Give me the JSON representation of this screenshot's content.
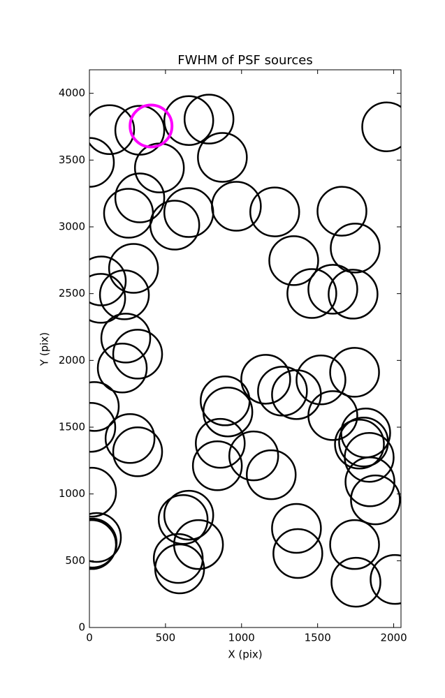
{
  "chart_data": {
    "type": "scatter",
    "title": "FWHM of PSF sources",
    "x_label": "X (pix)",
    "y_label": "Y (pix)",
    "xlim": [
      0,
      2048
    ],
    "ylim": [
      0,
      4176
    ],
    "xticks": [
      0,
      500,
      1000,
      1500,
      2000
    ],
    "yticks": [
      0,
      500,
      1000,
      1500,
      2000,
      2500,
      3000,
      3500,
      4000
    ],
    "series": [
      {
        "color": "#000000",
        "x": [
          133,
          0,
          331,
          460,
          653,
          786,
          874,
          331,
          257,
          561,
          653,
          966,
          1218,
          1660,
          1747,
          1343,
          1462,
          1600,
          1733,
          290,
          78,
          74,
          230,
          239,
          317,
          216,
          1159,
          1269,
          1361,
          1522,
          1743,
          1600,
          32,
          9,
          267,
          317,
          892,
          910,
          860,
          841,
          1080,
          1195,
          1775,
          1816,
          1802,
          1839,
          1844,
          1880,
          14,
          46,
          18,
          14,
          616,
          653,
          717,
          584,
          593,
          1361,
          1370,
          1743,
          1752,
          2009,
          1954
        ],
        "y": [
          3728,
          3483,
          3723,
          3441,
          3796,
          3807,
          3520,
          3217,
          3102,
          3013,
          3107,
          3154,
          3112,
          3117,
          2841,
          2747,
          2501,
          2533,
          2496,
          2689,
          2595,
          2465,
          2491,
          2167,
          2047,
          1943,
          1859,
          1770,
          1744,
          1854,
          1911,
          1587,
          1655,
          1499,
          1415,
          1316,
          1697,
          1614,
          1379,
          1211,
          1285,
          1144,
          1373,
          1457,
          1389,
          1274,
          1091,
          956,
          1013,
          674,
          632,
          621,
          809,
          841,
          621,
          517,
          439,
          742,
          554,
          621,
          339,
          360,
          3749
        ]
      },
      {
        "color": "#ff00ff",
        "x": [
          405
        ],
        "y": [
          3755
        ]
      }
    ]
  }
}
